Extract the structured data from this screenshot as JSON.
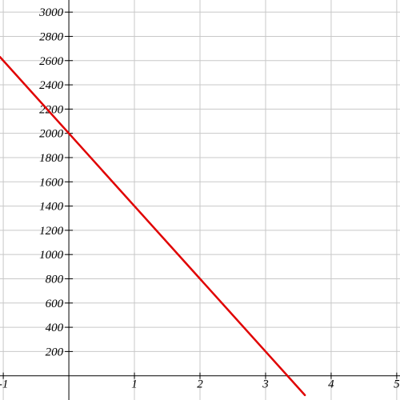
{
  "chart_data": {
    "type": "line",
    "title": "",
    "xlabel": "",
    "ylabel": "",
    "xlim": [
      -1.05,
      5.05
    ],
    "ylim": [
      -200,
      3100
    ],
    "grid": true,
    "x_ticks": [
      -1,
      1,
      2,
      3,
      4,
      5
    ],
    "x_tick_labels": [
      "-1",
      "1",
      "2",
      "3",
      "4",
      "5"
    ],
    "y_ticks": [
      200,
      400,
      600,
      800,
      1000,
      1200,
      1400,
      1600,
      1800,
      2000,
      2200,
      2400,
      2600,
      2800,
      3000
    ],
    "y_tick_labels": [
      "200",
      "400",
      "600",
      "800",
      "1000",
      "1200",
      "1400",
      "1600",
      "1800",
      "2000",
      "2200",
      "2400",
      "2600",
      "2800",
      "3000"
    ],
    "series": [
      {
        "color": "#e00000",
        "x": [
          -1.05,
          0,
          0.5,
          1,
          2,
          3,
          3.6
        ],
        "y": [
          2630,
          2000,
          1700,
          1400,
          800,
          200,
          -160
        ]
      }
    ]
  }
}
